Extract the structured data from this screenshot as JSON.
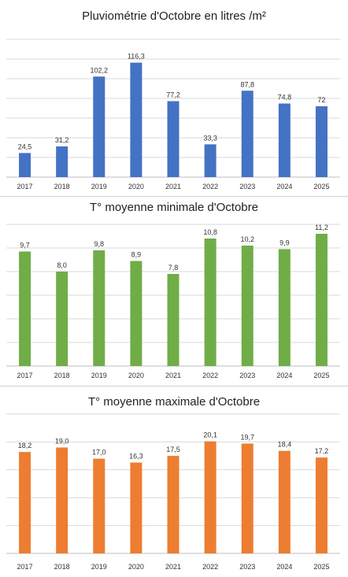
{
  "chart_data": [
    {
      "type": "bar",
      "title": "Pluviométrie d'Octobre en litres /m²",
      "categories": [
        "2017",
        "2018",
        "2019",
        "2020",
        "2021",
        "2022",
        "2023",
        "2024",
        "2025"
      ],
      "values": [
        24.5,
        31.2,
        102.2,
        116.3,
        77.2,
        33.3,
        87.8,
        74.8,
        72
      ],
      "value_labels": [
        "24,5",
        "31,2",
        "102,2",
        "116,3",
        "77,2",
        "33,3",
        "87,8",
        "74,8",
        "72"
      ],
      "color": "#4472C4",
      "ylim": [
        0,
        140
      ],
      "grid": true,
      "legend": "none",
      "xlabel": "",
      "ylabel": ""
    },
    {
      "type": "bar",
      "title": "T° moyenne minimale d'Octobre",
      "categories": [
        "2017",
        "2018",
        "2019",
        "2020",
        "2021",
        "2022",
        "2023",
        "2024",
        "2025"
      ],
      "values": [
        9.7,
        8.0,
        9.8,
        8.9,
        7.8,
        10.8,
        10.2,
        9.9,
        11.2
      ],
      "value_labels": [
        "9,7",
        "8,0",
        "9,8",
        "8,9",
        "7,8",
        "10,8",
        "10,2",
        "9,9",
        "11,2"
      ],
      "color": "#70AD47",
      "ylim": [
        0,
        12
      ],
      "grid": true,
      "legend": "none",
      "xlabel": "",
      "ylabel": ""
    },
    {
      "type": "bar",
      "title": "T° moyenne maximale d'Octobre",
      "categories": [
        "2017",
        "2018",
        "2019",
        "2020",
        "2021",
        "2022",
        "2023",
        "2024",
        "2025"
      ],
      "values": [
        18.2,
        19.0,
        17.0,
        16.3,
        17.5,
        20.1,
        19.7,
        18.4,
        17.2
      ],
      "value_labels": [
        "18,2",
        "19,0",
        "17,0",
        "16,3",
        "17,5",
        "20,1",
        "19,7",
        "18,4",
        "17,2"
      ],
      "color": "#ED7D31",
      "ylim": [
        0,
        25
      ],
      "grid": true,
      "legend": "none",
      "xlabel": "",
      "ylabel": ""
    }
  ]
}
